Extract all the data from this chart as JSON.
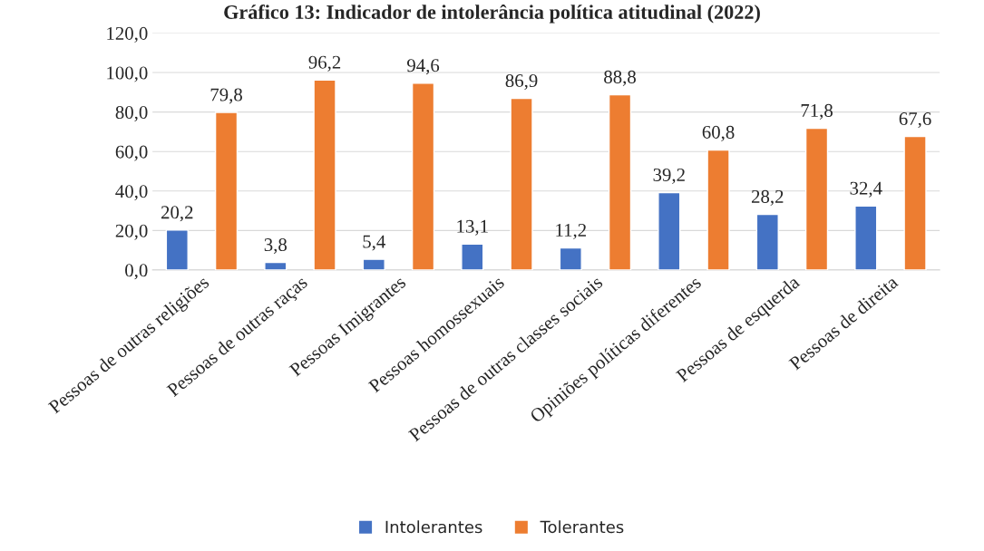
{
  "chart_data": {
    "type": "bar",
    "title": "Gráfico 13: Indicador de intolerância política atitudinal (2022)",
    "categories": [
      "Pessoas de outras religiões",
      "Pessoas de outras raças",
      "Pessoas Imigrantes",
      "Pessoas homossexuais",
      "Pessoas de outras classes sociais",
      "Opiniões políticas diferentes",
      "Pessoas de esquerda",
      "Pessoas de direita"
    ],
    "series": [
      {
        "name": "Intolerantes",
        "color": "#4472c4",
        "values": [
          20.2,
          3.8,
          5.4,
          13.1,
          11.2,
          39.2,
          28.2,
          32.4
        ],
        "value_labels": [
          "20,2",
          "3,8",
          "5,4",
          "13,1",
          "11,2",
          "39,2",
          "28,2",
          "32,4"
        ]
      },
      {
        "name": "Tolerantes",
        "color": "#ed7d31",
        "values": [
          79.8,
          96.2,
          94.6,
          86.9,
          88.8,
          60.8,
          71.8,
          67.6
        ],
        "value_labels": [
          "79,8",
          "96,2",
          "94,6",
          "86,9",
          "88,8",
          "60,8",
          "71,8",
          "67,6"
        ]
      }
    ],
    "ylim": [
      0,
      120
    ],
    "yticks": [
      {
        "value": 0,
        "label": "0,0"
      },
      {
        "value": 20,
        "label": "20,0"
      },
      {
        "value": 40,
        "label": "40,0"
      },
      {
        "value": 60,
        "label": "60,0"
      },
      {
        "value": 80,
        "label": "80,0"
      },
      {
        "value": 100,
        "label": "100,0"
      },
      {
        "value": 120,
        "label": "120,0"
      }
    ],
    "grid": "y",
    "legend": "bottom"
  }
}
